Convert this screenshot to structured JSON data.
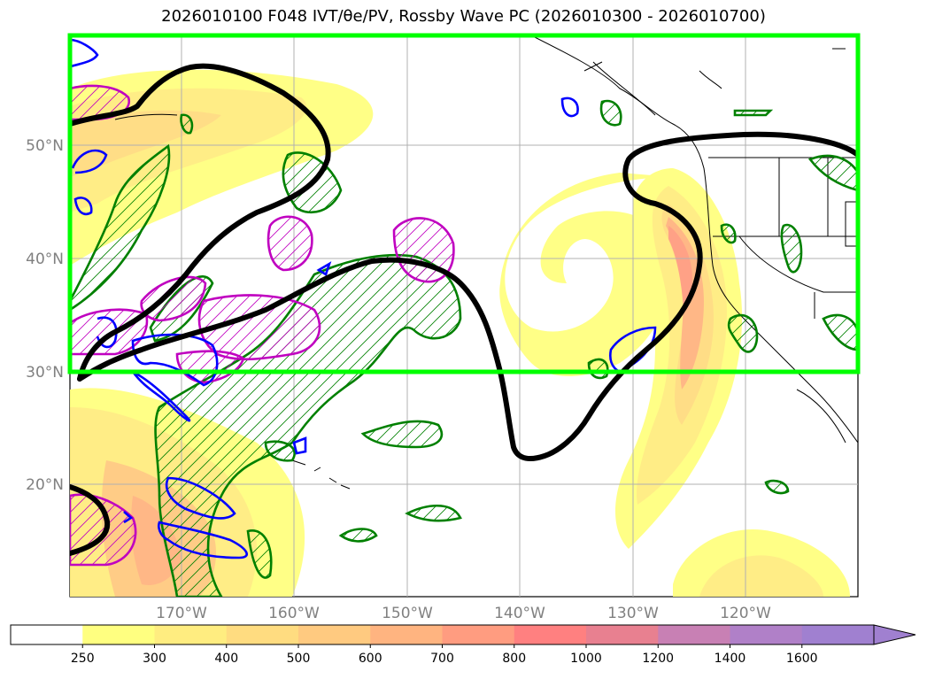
{
  "title": "2026010100 F048 IVT/θe/PV, Rossby Wave PC (2026010300 - 2026010700)",
  "map": {
    "lat_labels": [
      "50°N",
      "40°N",
      "30°N",
      "20°N"
    ],
    "lon_labels": [
      "170°W",
      "160°W",
      "150°W",
      "140°W",
      "130°W",
      "120°W"
    ],
    "highlight_box_color": "#00ff00",
    "rossby_wave_contour_color": "#000000",
    "pv_contour_color": "#008000",
    "theta_e_contour_color": "#0000ff",
    "ivt_secondary_contour_color": "#c000c0"
  },
  "colorbar": {
    "labels": [
      "250",
      "300",
      "400",
      "500",
      "600",
      "700",
      "800",
      "1000",
      "1200",
      "1400",
      "1600"
    ],
    "colors": [
      "#ffffff",
      "#ffff80",
      "#ffed80",
      "#ffdc80",
      "#ffca80",
      "#ffb480",
      "#ff9c80",
      "#ff8080",
      "#e88090",
      "#c880b4",
      "#b080c8",
      "#a080d0"
    ]
  }
}
